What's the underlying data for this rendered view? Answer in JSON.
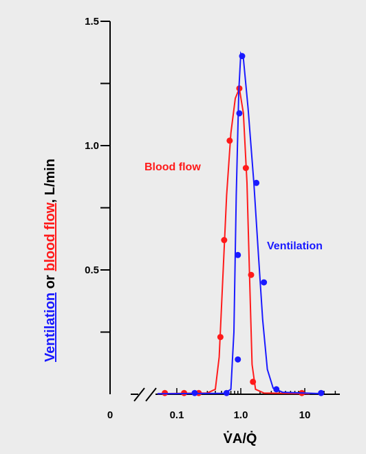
{
  "chart_data": {
    "type": "line",
    "xlabel": "V̇A/Q̇",
    "ylabel_parts": [
      {
        "text": "Ventilation",
        "color": "#1a1aff",
        "underline": true
      },
      {
        "text": " or ",
        "color": "#000000",
        "underline": false
      },
      {
        "text": "blood flow",
        "color": "#ff1a1a",
        "underline": true
      },
      {
        "text": ", L/min",
        "color": "#000000",
        "underline": false
      }
    ],
    "x_scale": "log",
    "x_broken_axis": true,
    "xlim": [
      0.04,
      30
    ],
    "ylim": [
      0,
      1.5
    ],
    "x_ticks": [
      {
        "label": "0",
        "value": null
      },
      {
        "label": "0.1",
        "value": 0.1
      },
      {
        "label": "1.0",
        "value": 1.0
      },
      {
        "label": "10",
        "value": 10
      }
    ],
    "y_ticks": [
      {
        "label": "",
        "value": 0.25
      },
      {
        "label": "0.5",
        "value": 0.5
      },
      {
        "label": "",
        "value": 0.75
      },
      {
        "label": "1.0",
        "value": 1.0
      },
      {
        "label": "",
        "value": 1.25
      },
      {
        "label": "1.5",
        "value": 1.5
      }
    ],
    "series": [
      {
        "name": "Blood flow",
        "color": "#ff1a1a",
        "points": [
          [
            0.065,
            0.005
          ],
          [
            0.13,
            0.005
          ],
          [
            0.22,
            0.005
          ],
          [
            0.48,
            0.23
          ],
          [
            0.55,
            0.62
          ],
          [
            0.67,
            1.02
          ],
          [
            0.95,
            1.23
          ],
          [
            1.2,
            0.91
          ],
          [
            1.45,
            0.48
          ],
          [
            1.55,
            0.05
          ],
          [
            9,
            0.005
          ]
        ],
        "curve": [
          [
            0.05,
            0.002
          ],
          [
            0.3,
            0.005
          ],
          [
            0.4,
            0.02
          ],
          [
            0.46,
            0.15
          ],
          [
            0.52,
            0.45
          ],
          [
            0.6,
            0.8
          ],
          [
            0.7,
            1.05
          ],
          [
            0.82,
            1.19
          ],
          [
            0.95,
            1.23
          ],
          [
            1.1,
            1.13
          ],
          [
            1.25,
            0.85
          ],
          [
            1.38,
            0.45
          ],
          [
            1.5,
            0.12
          ],
          [
            1.7,
            0.02
          ],
          [
            2.3,
            0.005
          ],
          [
            12,
            0.002
          ]
        ]
      },
      {
        "name": "Ventilation",
        "color": "#1a1aff",
        "points": [
          [
            0.19,
            0.005
          ],
          [
            0.6,
            0.005
          ],
          [
            0.9,
            0.14
          ],
          [
            0.9,
            0.56
          ],
          [
            0.95,
            1.13
          ],
          [
            1.05,
            1.36
          ],
          [
            1.75,
            0.85
          ],
          [
            2.3,
            0.45
          ],
          [
            3.6,
            0.02
          ],
          [
            18,
            0.005
          ]
        ],
        "curve": [
          [
            0.05,
            0.002
          ],
          [
            0.55,
            0.004
          ],
          [
            0.7,
            0.02
          ],
          [
            0.78,
            0.25
          ],
          [
            0.85,
            0.8
          ],
          [
            0.93,
            1.22
          ],
          [
            1.0,
            1.37
          ],
          [
            1.1,
            1.35
          ],
          [
            1.3,
            1.15
          ],
          [
            1.6,
            0.85
          ],
          [
            1.9,
            0.55
          ],
          [
            2.2,
            0.3
          ],
          [
            2.6,
            0.1
          ],
          [
            3.2,
            0.025
          ],
          [
            4.5,
            0.008
          ],
          [
            20,
            0.002
          ]
        ]
      }
    ]
  }
}
